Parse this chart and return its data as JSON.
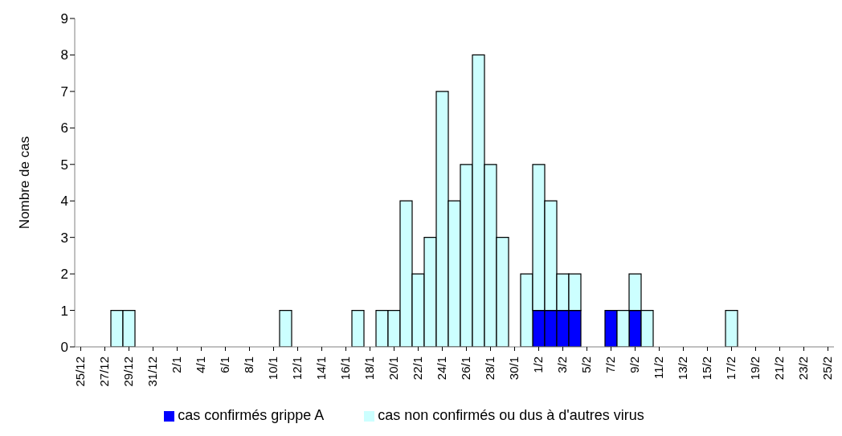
{
  "chart_data": {
    "type": "bar",
    "stacked": true,
    "ylabel": "Nombre de cas",
    "ylim": [
      0,
      9
    ],
    "yticks": [
      0,
      1,
      2,
      3,
      4,
      5,
      6,
      7,
      8,
      9
    ],
    "grid": false,
    "legend": "bottom",
    "categories": [
      "25/12",
      null,
      "27/12",
      null,
      "29/12",
      null,
      "31/12",
      null,
      "2/1",
      null,
      "4/1",
      null,
      "6/1",
      null,
      "8/1",
      null,
      "10/1",
      null,
      "12/1",
      null,
      "14/1",
      null,
      "16/1",
      null,
      "18/1",
      null,
      "20/1",
      null,
      "22/1",
      null,
      "24/1",
      null,
      "26/1",
      null,
      "28/1",
      null,
      "30/1",
      null,
      "1/2",
      null,
      "3/2",
      null,
      "5/2",
      null,
      "7/2",
      null,
      "9/2",
      null,
      "11/2",
      null,
      "13/2",
      null,
      "15/2",
      null,
      "17/2",
      null,
      "19/2",
      null,
      "21/2",
      null,
      "23/2",
      null,
      "25/2"
    ],
    "series": [
      {
        "name": "cas confirmés grippe A",
        "color": "#0000ff",
        "values": [
          0,
          0,
          0,
          0,
          0,
          0,
          0,
          0,
          0,
          0,
          0,
          0,
          0,
          0,
          0,
          0,
          0,
          0,
          0,
          0,
          0,
          0,
          0,
          0,
          0,
          0,
          0,
          0,
          0,
          0,
          0,
          0,
          0,
          0,
          0,
          0,
          0,
          0,
          1,
          1,
          1,
          1,
          0,
          0,
          1,
          0,
          1,
          0,
          0,
          0,
          0,
          0,
          0,
          0,
          0,
          0,
          0,
          0,
          0,
          0,
          0,
          0,
          0
        ]
      },
      {
        "name": "cas non confirmés ou dus à d'autres virus",
        "color": "#ccffff",
        "values": [
          0,
          0,
          0,
          1,
          1,
          0,
          0,
          0,
          0,
          0,
          0,
          0,
          0,
          0,
          0,
          0,
          0,
          1,
          0,
          0,
          0,
          0,
          0,
          1,
          0,
          1,
          1,
          4,
          2,
          3,
          7,
          4,
          5,
          8,
          5,
          3,
          0,
          2,
          4,
          3,
          1,
          1,
          0,
          0,
          0,
          1,
          1,
          1,
          0,
          0,
          0,
          0,
          0,
          0,
          1,
          0,
          0,
          0,
          0,
          0,
          0,
          0,
          0
        ]
      }
    ]
  }
}
